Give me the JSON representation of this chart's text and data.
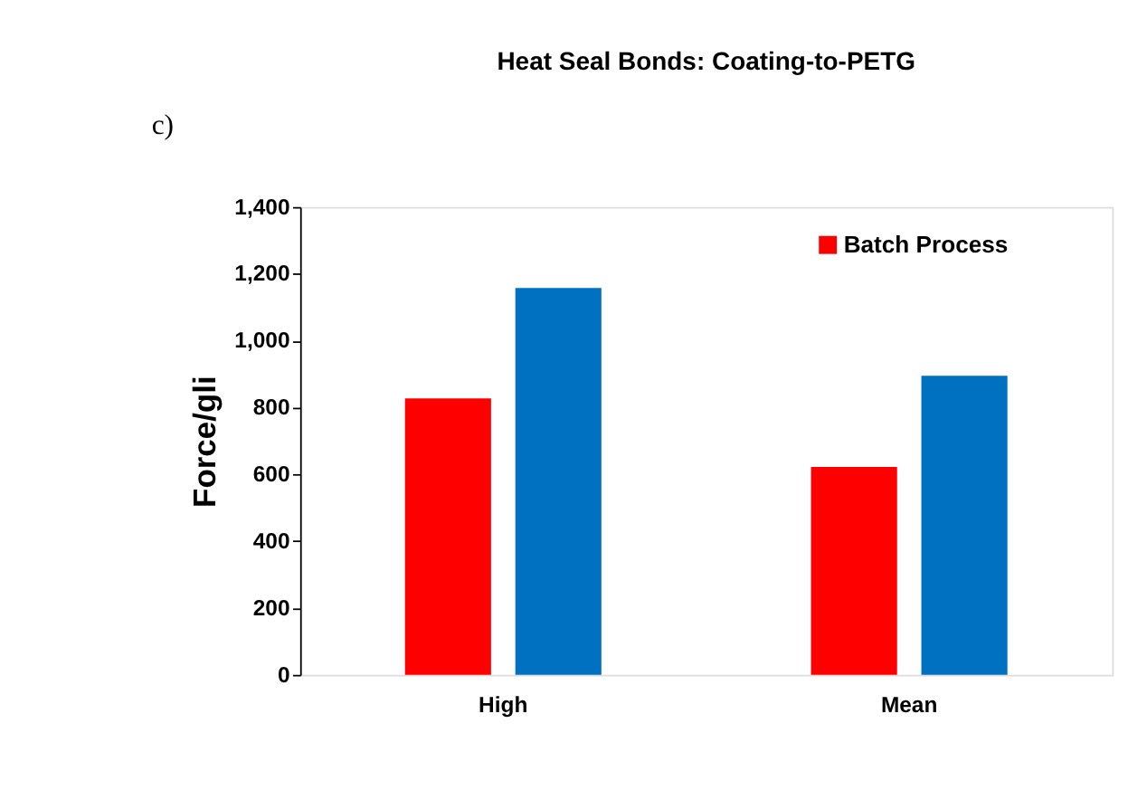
{
  "chart_data": {
    "type": "bar",
    "title": "Heat Seal Bonds: Coating-to-PETG",
    "ylabel": "Force/gli",
    "categories": [
      "High",
      "Mean"
    ],
    "series": [
      {
        "name": "Batch Process",
        "color": "#ff0000",
        "values": [
          827,
          622
        ]
      },
      {
        "color": "#0070c0",
        "values": [
          1158,
          895
        ]
      }
    ],
    "ylim": [
      0,
      1400
    ],
    "yticks": [
      0,
      200,
      400,
      600,
      800,
      {
        "value": 1000,
        "label": "1,000"
      },
      {
        "value": 1200,
        "label": "1,200"
      },
      {
        "value": 1400,
        "label": "1,400"
      }
    ],
    "grid": false,
    "legend": "top right",
    "annotations": [
      "c)"
    ]
  }
}
